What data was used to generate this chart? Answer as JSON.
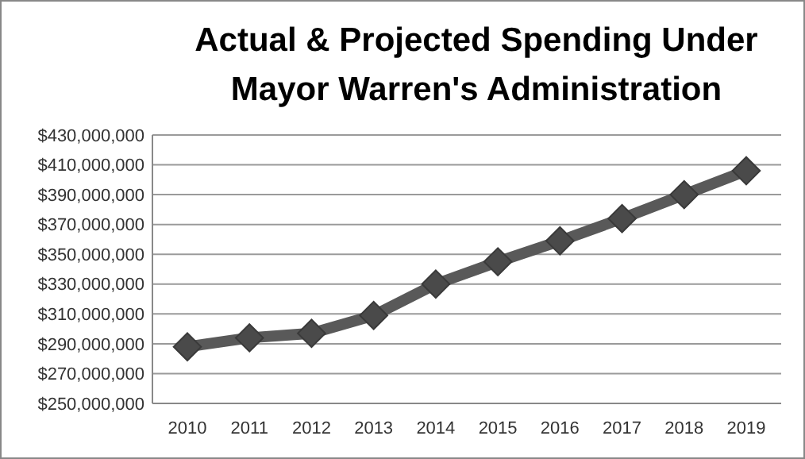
{
  "chart_data": {
    "type": "line",
    "title": "Actual & Projected Spending Under\nMayor Warren's Administration",
    "categories": [
      "2010",
      "2011",
      "2012",
      "2013",
      "2014",
      "2015",
      "2016",
      "2017",
      "2018",
      "2019"
    ],
    "series": [
      {
        "color": "#595959",
        "values": [
          288000000,
          294000000,
          297000000,
          309000000,
          330000000,
          345000000,
          359000000,
          374000000,
          390000000,
          406000000
        ]
      }
    ],
    "ylim": [
      250000000,
      430000000
    ],
    "yticks": [
      {
        "value": 250000000,
        "label": "$250,000,000"
      },
      {
        "value": 270000000,
        "label": "$270,000,000"
      },
      {
        "value": 290000000,
        "label": "$290,000,000"
      },
      {
        "value": 310000000,
        "label": "$310,000,000"
      },
      {
        "value": 330000000,
        "label": "$330,000,000"
      },
      {
        "value": 350000000,
        "label": "$350,000,000"
      },
      {
        "value": 370000000,
        "label": "$370,000,000"
      },
      {
        "value": 390000000,
        "label": "$390,000,000"
      },
      {
        "value": 410000000,
        "label": "$410,000,000"
      },
      {
        "value": 430000000,
        "label": "$430,000,000"
      }
    ],
    "grid": "y",
    "marker": "diamond"
  }
}
